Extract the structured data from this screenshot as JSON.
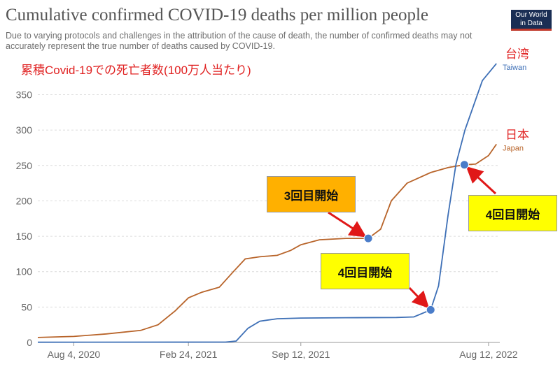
{
  "header": {
    "title": "Cumulative confirmed COVID-19 deaths per million people",
    "subtitle": "Due to varying protocols and challenges in the attribution of the cause of death, the number of confirmed deaths may not accurately represent the true number of deaths caused by COVID-19.",
    "logo_line1": "Our World",
    "logo_line2": "in Data"
  },
  "annotation_heading": "累積Covid-19での死亡者数(100万人当たり)",
  "callouts": {
    "third_dose_label": "3回目開始",
    "fourth_dose_taiwan_label": "4回目開始",
    "fourth_dose_japan_label": "4回目開始"
  },
  "colors": {
    "taiwan": "#3d6fb6",
    "japan": "#b8642a",
    "marker": "#4a7cc9",
    "arrow": "#e01818",
    "jp_label": "#e02020"
  },
  "chart_data": {
    "type": "line",
    "xlim": [
      "2020-06-01",
      "2022-09-01"
    ],
    "ylim": [
      0,
      390
    ],
    "y_ticks": [
      0,
      50,
      100,
      150,
      200,
      250,
      300,
      350
    ],
    "x_ticks": [
      "Aug 4, 2020",
      "Feb 24, 2021",
      "Sep 12, 2021",
      "Aug 12, 2022"
    ],
    "x_tick_dates": [
      "2020-08-04",
      "2021-02-24",
      "2021-09-12",
      "2022-08-12"
    ],
    "grid": true,
    "series": [
      {
        "name": "Japan",
        "jp_name": "日本",
        "points": [
          [
            "2020-06-01",
            7
          ],
          [
            "2020-08-04",
            8.5
          ],
          [
            "2020-10-01",
            12
          ],
          [
            "2020-12-01",
            17
          ],
          [
            "2021-01-01",
            25
          ],
          [
            "2021-02-01",
            45
          ],
          [
            "2021-02-24",
            63
          ],
          [
            "2021-03-20",
            71
          ],
          [
            "2021-04-20",
            78
          ],
          [
            "2021-05-15",
            100
          ],
          [
            "2021-06-05",
            118
          ],
          [
            "2021-07-01",
            121
          ],
          [
            "2021-08-01",
            123
          ],
          [
            "2021-08-25",
            130
          ],
          [
            "2021-09-12",
            138
          ],
          [
            "2021-10-15",
            145
          ],
          [
            "2021-12-01",
            147
          ],
          [
            "2021-12-24",
            147
          ],
          [
            "2022-01-10",
            147
          ],
          [
            "2022-02-01",
            160
          ],
          [
            "2022-02-20",
            200
          ],
          [
            "2022-03-20",
            225
          ],
          [
            "2022-05-01",
            240
          ],
          [
            "2022-06-01",
            247
          ],
          [
            "2022-06-30",
            251
          ],
          [
            "2022-07-20",
            252
          ],
          [
            "2022-08-12",
            264
          ],
          [
            "2022-08-26",
            280
          ]
        ]
      },
      {
        "name": "Taiwan",
        "jp_name": "台湾",
        "points": [
          [
            "2020-06-01",
            0.3
          ],
          [
            "2021-05-01",
            0.5
          ],
          [
            "2021-05-20",
            2
          ],
          [
            "2021-06-10",
            20
          ],
          [
            "2021-07-01",
            30
          ],
          [
            "2021-08-01",
            33.5
          ],
          [
            "2021-09-12",
            34.5
          ],
          [
            "2021-12-01",
            35
          ],
          [
            "2022-03-01",
            35.2
          ],
          [
            "2022-04-01",
            36
          ],
          [
            "2022-05-01",
            46
          ],
          [
            "2022-05-15",
            80
          ],
          [
            "2022-06-01",
            180
          ],
          [
            "2022-06-15",
            252
          ],
          [
            "2022-07-01",
            300
          ],
          [
            "2022-08-01",
            370
          ],
          [
            "2022-08-26",
            394
          ]
        ]
      }
    ],
    "markers": [
      {
        "series": "Japan",
        "date": "2022-01-10",
        "value": 147
      },
      {
        "series": "Taiwan",
        "date": "2022-05-01",
        "value": 46
      },
      {
        "series": "Japan",
        "date": "2022-06-30",
        "value": 251
      }
    ]
  }
}
